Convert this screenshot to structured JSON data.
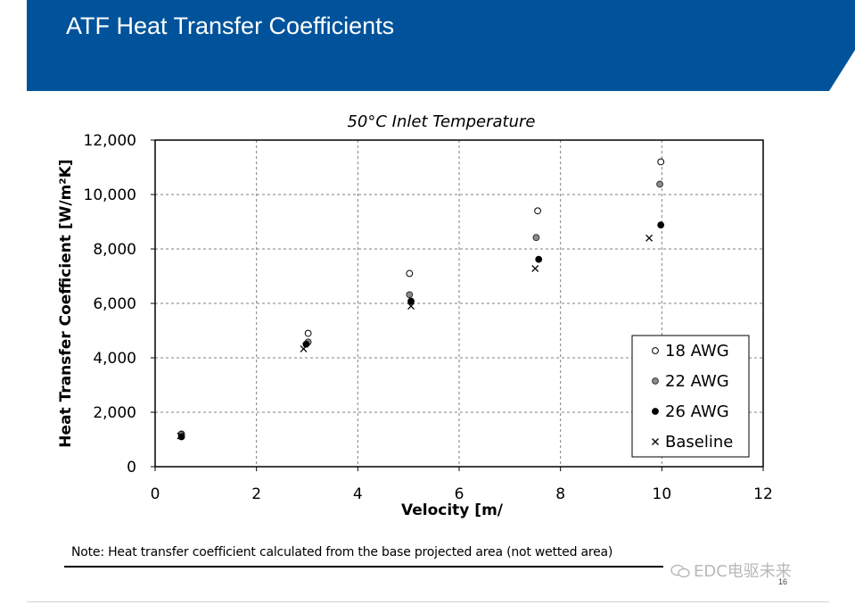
{
  "slide": {
    "title": "ATF Heat Transfer Coefficients",
    "note": "Note: Heat transfer coefficient calculated from the base projected area (not wetted area)",
    "watermark": "EDC电驱未来",
    "page_number": "16",
    "banner_color": "#00539b"
  },
  "chart_data": {
    "type": "scatter",
    "title": "50°C Inlet Temperature",
    "xlabel": "Velocity [m/",
    "ylabel": "Heat Transfer Coefficient [W/m²K]",
    "xlim": [
      0,
      12
    ],
    "ylim": [
      0,
      12000
    ],
    "x_ticks": [
      0,
      2,
      4,
      6,
      8,
      10,
      12
    ],
    "y_ticks": [
      0,
      2000,
      4000,
      6000,
      8000,
      10000,
      12000
    ],
    "x_tick_labels": [
      "0",
      "2",
      "4",
      "6",
      "8",
      "10",
      "12"
    ],
    "y_tick_labels": [
      "0",
      "2,000",
      "4,000",
      "6,000",
      "8,000",
      "10,000",
      "12,000"
    ],
    "grid": true,
    "legend_position": "lower-right",
    "series": [
      {
        "name": "18 AWG",
        "marker": "open-circle",
        "color": "#000000",
        "points": [
          [
            0.52,
            1200
          ],
          [
            3.02,
            4900
          ],
          [
            5.02,
            7100
          ],
          [
            7.55,
            9400
          ],
          [
            9.98,
            11200
          ]
        ]
      },
      {
        "name": "22 AWG",
        "marker": "gray-circle",
        "color": "#808080",
        "points": [
          [
            0.52,
            1180
          ],
          [
            3.02,
            4580
          ],
          [
            5.02,
            6320
          ],
          [
            7.52,
            8420
          ],
          [
            9.96,
            10380
          ]
        ]
      },
      {
        "name": "26 AWG",
        "marker": "filled-circle",
        "color": "#000000",
        "points": [
          [
            0.52,
            1100
          ],
          [
            2.98,
            4500
          ],
          [
            5.05,
            6080
          ],
          [
            7.57,
            7620
          ],
          [
            9.98,
            8880
          ]
        ]
      },
      {
        "name": "Baseline",
        "marker": "x",
        "color": "#000000",
        "points": [
          [
            0.5,
            1130
          ],
          [
            2.93,
            4330
          ],
          [
            5.05,
            5900
          ],
          [
            7.5,
            7280
          ],
          [
            9.75,
            8400
          ]
        ]
      }
    ]
  }
}
